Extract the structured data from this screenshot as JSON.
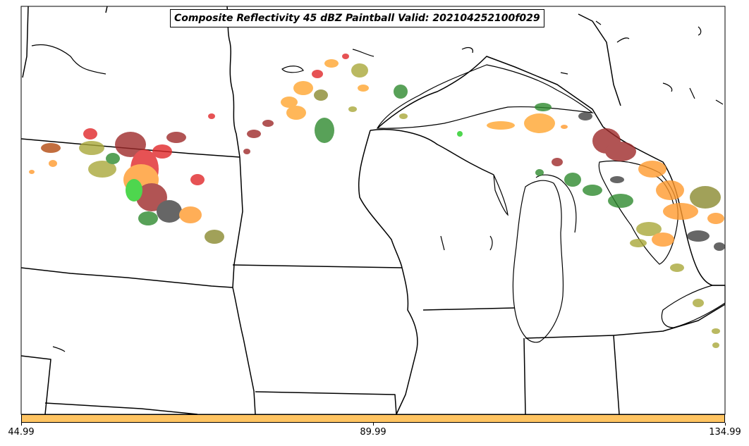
{
  "map": {
    "title": "Composite Reflectivity 45 dBZ Paintball Valid: 202104252100f029",
    "colorbar": {
      "color": "#ffc462",
      "ticks": [
        "44.99",
        "89.99",
        "134.99"
      ]
    },
    "member_colors": [
      "#e0282a",
      "#ff9a2e",
      "#ffa630",
      "#2f8a2f",
      "#a9a83a",
      "#9e2a2a",
      "#404040",
      "#22cc22",
      "#b44a10",
      "#8a8a30"
    ],
    "background": "#ffffff"
  }
}
